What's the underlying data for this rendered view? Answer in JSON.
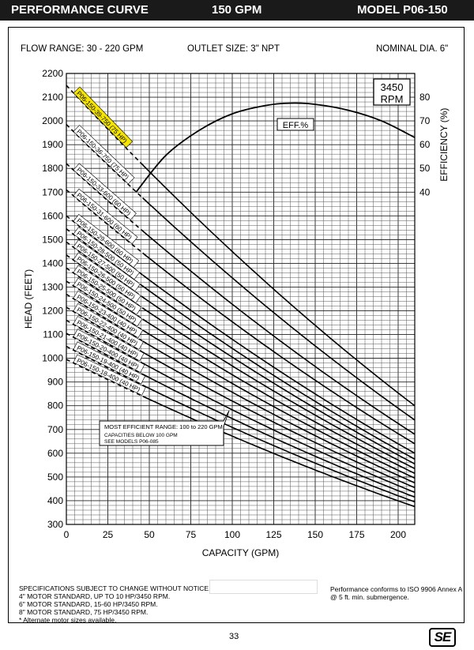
{
  "header": {
    "title": "PERFORMANCE CURVE",
    "flow": "150 GPM",
    "model": "MODEL  P06-150"
  },
  "specs": {
    "flow_range": "FLOW RANGE: 30 - 220 GPM",
    "outlet": "OUTLET SIZE: 3\" NPT",
    "diameter": "NOMINAL DIA. 6\""
  },
  "rpm_box": [
    "3450",
    "RPM"
  ],
  "eff_label": "EFF.%",
  "range_note": [
    "MOST EFFICIENT RANGE: 100 to 220 GPM",
    "CAPACITIES BELOW 100 GPM",
    "SEE MODELS  P06-085"
  ],
  "footnotes": [
    "SPECIFICATIONS SUBJECT TO CHANGE WITHOUT NOTICE.",
    "4\" MOTOR STANDARD, UP TO 10 HP/3450 RPM.",
    "6\" MOTOR STANDARD, 15-60 HP/3450 RPM.",
    "8\" MOTOR STANDARD, 75 HP/3450 RPM.",
    "* Alternate motor sizes available."
  ],
  "conformance": [
    "Performance conforms to ISO 9906 Annex A",
    "@ 5 ft. min. submergence."
  ],
  "page_number": "33",
  "logo_text": "SE",
  "colors": {
    "header_bg": "#1a1a1a",
    "highlight": "#f5e400",
    "grid": "#555555",
    "curve": "#000000"
  },
  "chart_data": {
    "type": "line",
    "xlabel": "CAPACITY (GPM)",
    "ylabel": "HEAD (FEET)",
    "y2label": "EFFICIENCY (%)",
    "xlim": [
      0,
      210
    ],
    "ylim": [
      300,
      2200
    ],
    "x_ticks": [
      0,
      25,
      50,
      75,
      100,
      125,
      150,
      175,
      200
    ],
    "y_ticks": [
      300,
      400,
      500,
      600,
      700,
      800,
      900,
      1000,
      1100,
      1200,
      1300,
      1400,
      1500,
      1600,
      1700,
      1800,
      1900,
      2000,
      2100,
      2200
    ],
    "eff_ticks": [
      40,
      50,
      60,
      70,
      80
    ],
    "eff_axis_map": {
      "eff_40_head": 1700,
      "eff_80_head": 2100
    },
    "grid": true,
    "highlighted_series": "P06-150-39-750 (75 HP)",
    "series": [
      {
        "name": "P06-150-39-750 (75 HP)",
        "shutoff": 2150,
        "end_head": 800
      },
      {
        "name": "P06-150-36-750 (75 HP)",
        "shutoff": 1985,
        "end_head": 740
      },
      {
        "name": "P06-150-33-600 (60 HP)",
        "shutoff": 1820,
        "end_head": 680
      },
      {
        "name": "P06-150-31-600 (60 HP)",
        "shutoff": 1710,
        "end_head": 640
      },
      {
        "name": "P06-150-29-600 (60 HP)",
        "shutoff": 1600,
        "end_head": 600
      },
      {
        "name": "P06-150-28-500 (50 HP)",
        "shutoff": 1545,
        "end_head": 575
      },
      {
        "name": "P06-150-27-500 (50 HP)",
        "shutoff": 1490,
        "end_head": 555
      },
      {
        "name": "P06-150-26-500 (50 HP)",
        "shutoff": 1435,
        "end_head": 535
      },
      {
        "name": "P06-150-25-500 (50 HP)",
        "shutoff": 1380,
        "end_head": 515
      },
      {
        "name": "P06-150-24-500 (50 HP)",
        "shutoff": 1325,
        "end_head": 495
      },
      {
        "name": "P06-150-23-400 (40 HP)",
        "shutoff": 1270,
        "end_head": 475
      },
      {
        "name": "P06-150-22-400 (40 HP)",
        "shutoff": 1215,
        "end_head": 455
      },
      {
        "name": "P06-150-21-400 (40 HP)",
        "shutoff": 1160,
        "end_head": 435
      },
      {
        "name": "P06-150-20-400 (40 HP)",
        "shutoff": 1105,
        "end_head": 415
      },
      {
        "name": "P06-150-19-400 (40 HP)",
        "shutoff": 1050,
        "end_head": 395
      },
      {
        "name": "P06-150-18-400 (40 HP)",
        "shutoff": 995,
        "end_head": 375
      }
    ],
    "efficiency": {
      "name": "EFF.%",
      "x": [
        42,
        60,
        80,
        100,
        120,
        135,
        150,
        170,
        190,
        210
      ],
      "y": [
        40,
        55.5,
        66,
        73,
        76.5,
        77.5,
        77,
        74.5,
        70,
        63
      ]
    }
  }
}
